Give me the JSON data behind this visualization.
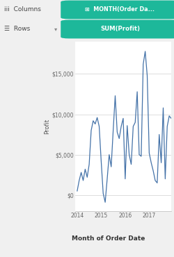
{
  "title_columns": "MONTH(Order Da...",
  "title_rows": "SUM(Profit)",
  "xlabel": "Month of Order Date",
  "ylabel": "Profit",
  "bg_color": "#f0f0f0",
  "chart_bg": "#ffffff",
  "line_color": "#4472a8",
  "grid_color": "#d8d8d8",
  "header_bg": "#f0f0f0",
  "columns_pill_color": "#1db89a",
  "rows_pill_color": "#1db89a",
  "columns_border_color": "#00a8c8",
  "rows_border_color": "#cc0000",
  "left_panel_border": "#cc0000",
  "bottom_panel_border": "#00a8c8",
  "yticks": [
    0,
    5000,
    10000,
    15000
  ],
  "ytick_labels": [
    "$0",
    "$5,000",
    "$10,000",
    "$15,000"
  ],
  "xtick_labels": [
    "2014",
    "2015",
    "2016",
    "2017"
  ],
  "x_values": [
    0,
    1,
    2,
    3,
    4,
    5,
    6,
    7,
    8,
    9,
    10,
    11,
    12,
    13,
    14,
    15,
    16,
    17,
    18,
    19,
    20,
    21,
    22,
    23,
    24,
    25,
    26,
    27,
    28,
    29,
    30,
    31,
    32,
    33,
    34,
    35,
    36,
    37,
    38,
    39,
    40,
    41,
    42,
    43,
    44,
    45,
    46,
    47
  ],
  "y_values": [
    500,
    1800,
    2800,
    1800,
    3200,
    2200,
    3800,
    8000,
    9200,
    8800,
    9600,
    8500,
    4200,
    200,
    -900,
    2000,
    5000,
    3500,
    8000,
    12300,
    7800,
    7000,
    8500,
    9500,
    2000,
    8600,
    5000,
    3800,
    8500,
    9000,
    12800,
    5000,
    4800,
    16200,
    17800,
    14800,
    5200,
    4000,
    3000,
    1800,
    1500,
    7500,
    4000,
    10800,
    2000,
    8500,
    9800,
    9500
  ]
}
